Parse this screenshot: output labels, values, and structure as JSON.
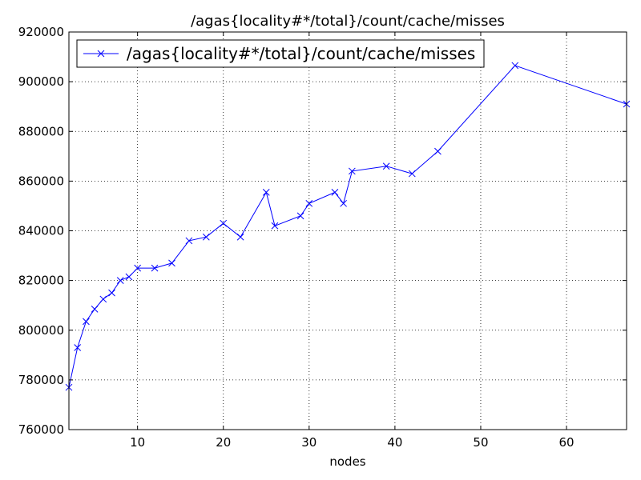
{
  "chart_data": {
    "type": "line",
    "title": "/agas{locality#*/total}/count/cache/misses",
    "xlabel": "nodes",
    "ylabel": "",
    "xlim": [
      2,
      67
    ],
    "ylim": [
      760000,
      920000
    ],
    "x_ticks": [
      10,
      20,
      30,
      40,
      50,
      60
    ],
    "y_ticks": [
      760000,
      780000,
      800000,
      820000,
      840000,
      860000,
      880000,
      900000,
      920000
    ],
    "grid": true,
    "legend_position": "top-left",
    "marker": "x",
    "series": [
      {
        "name": "/agas{locality#*/total}/count/cache/misses",
        "color": "#0000ff",
        "points": [
          {
            "x": 2,
            "y": 777000
          },
          {
            "x": 3,
            "y": 793000
          },
          {
            "x": 4,
            "y": 803500
          },
          {
            "x": 5,
            "y": 808500
          },
          {
            "x": 6,
            "y": 812500
          },
          {
            "x": 7,
            "y": 815000
          },
          {
            "x": 8,
            "y": 820000
          },
          {
            "x": 9,
            "y": 821500
          },
          {
            "x": 10,
            "y": 825000
          },
          {
            "x": 12,
            "y": 825000
          },
          {
            "x": 14,
            "y": 827000
          },
          {
            "x": 16,
            "y": 836000
          },
          {
            "x": 18,
            "y": 837500
          },
          {
            "x": 20,
            "y": 843000
          },
          {
            "x": 22,
            "y": 837500
          },
          {
            "x": 25,
            "y": 855500
          },
          {
            "x": 26,
            "y": 842000
          },
          {
            "x": 29,
            "y": 846000
          },
          {
            "x": 30,
            "y": 851000
          },
          {
            "x": 33,
            "y": 855500
          },
          {
            "x": 34,
            "y": 851000
          },
          {
            "x": 35,
            "y": 864000
          },
          {
            "x": 39,
            "y": 866000
          },
          {
            "x": 42,
            "y": 863000
          },
          {
            "x": 45,
            "y": 872000
          },
          {
            "x": 54,
            "y": 906500
          },
          {
            "x": 67,
            "y": 891000
          }
        ]
      }
    ]
  }
}
